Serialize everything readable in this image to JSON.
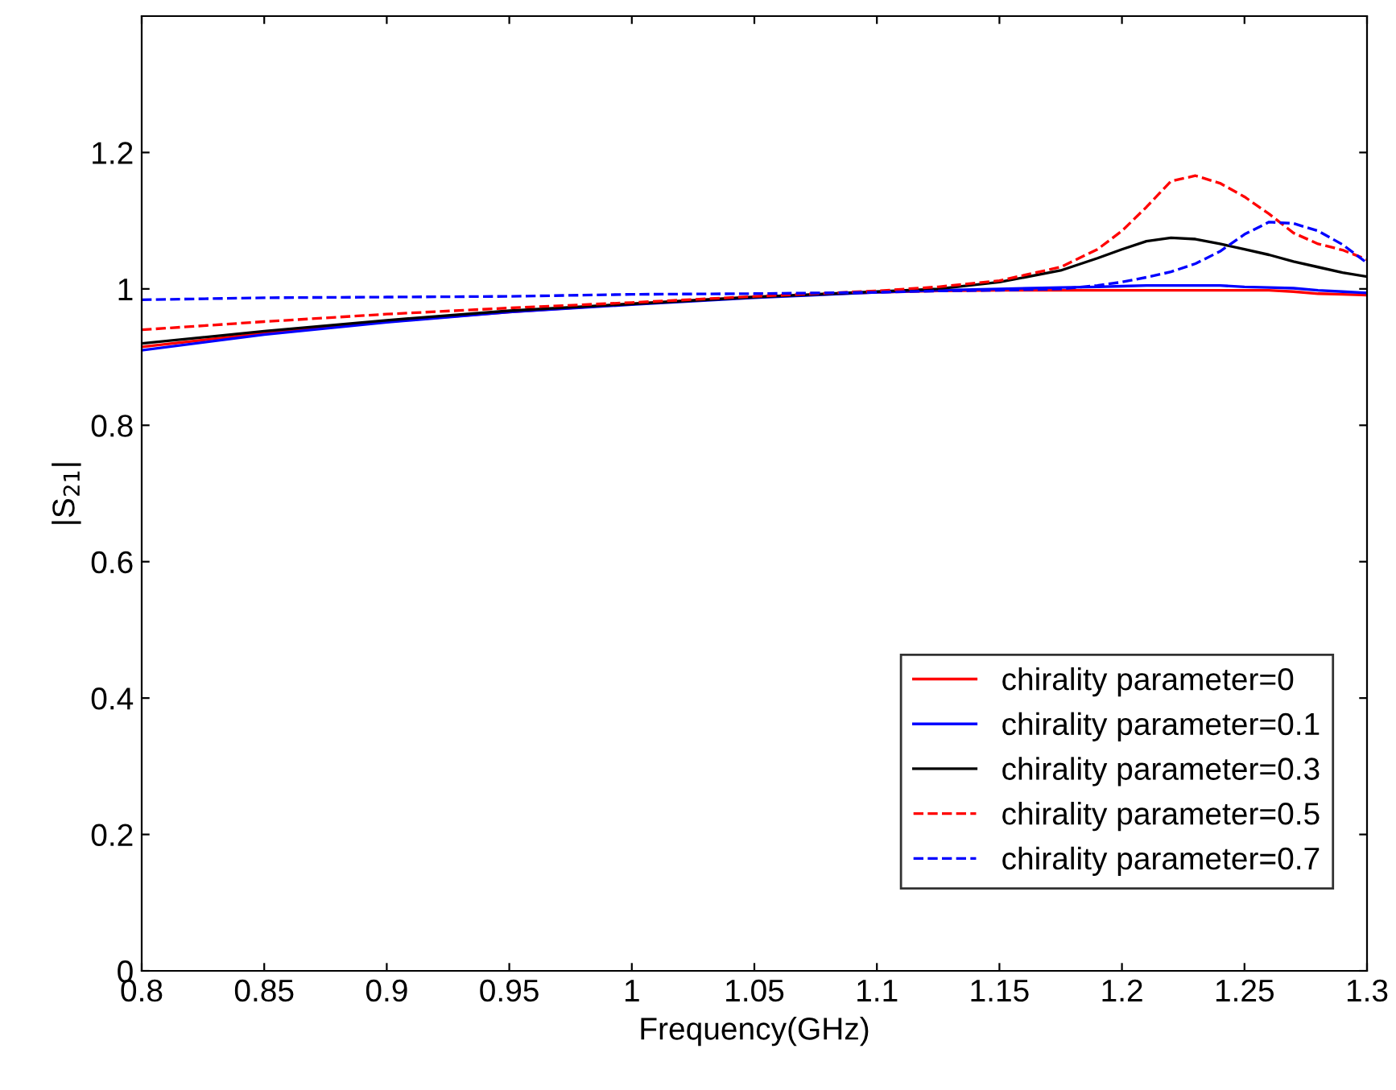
{
  "chart_data": {
    "type": "line",
    "xlabel": "Frequency(GHz)",
    "ylabel": "|S$_{21}$|",
    "x": [
      0.8,
      0.85,
      0.9,
      0.95,
      1.0,
      1.05,
      1.1,
      1.125,
      1.15,
      1.175,
      1.19,
      1.2,
      1.21,
      1.22,
      1.23,
      1.24,
      1.25,
      1.26,
      1.27,
      1.28,
      1.29,
      1.3
    ],
    "series": [
      {
        "name": "chirality parameter=0",
        "color": "#ff0000",
        "line_style": "solid",
        "values": [
          0.915,
          0.935,
          0.952,
          0.966,
          0.978,
          0.988,
          0.995,
          0.997,
          0.998,
          0.998,
          0.998,
          0.998,
          0.998,
          0.998,
          0.998,
          0.998,
          0.998,
          0.998,
          0.996,
          0.993,
          0.992,
          0.991
        ]
      },
      {
        "name": "chirality parameter=0.1",
        "color": "#0000ff",
        "line_style": "solid",
        "values": [
          0.91,
          0.933,
          0.951,
          0.966,
          0.977,
          0.987,
          0.995,
          0.998,
          1.0,
          1.002,
          1.003,
          1.004,
          1.005,
          1.005,
          1.005,
          1.005,
          1.003,
          1.002,
          1.001,
          0.998,
          0.996,
          0.994
        ]
      },
      {
        "name": "chirality parameter=0.3",
        "color": "#000000",
        "line_style": "solid",
        "values": [
          0.92,
          0.938,
          0.954,
          0.968,
          0.978,
          0.988,
          0.996,
          1.0,
          1.01,
          1.027,
          1.045,
          1.058,
          1.07,
          1.075,
          1.073,
          1.066,
          1.058,
          1.05,
          1.04,
          1.032,
          1.024,
          1.018
        ]
      },
      {
        "name": "chirality parameter=0.5",
        "color": "#ff0000",
        "line_style": "dashed",
        "values": [
          0.94,
          0.952,
          0.963,
          0.972,
          0.98,
          0.989,
          0.997,
          1.003,
          1.012,
          1.032,
          1.058,
          1.085,
          1.12,
          1.158,
          1.166,
          1.155,
          1.135,
          1.11,
          1.082,
          1.066,
          1.057,
          1.043
        ]
      },
      {
        "name": "chirality parameter=0.7",
        "color": "#0000ff",
        "line_style": "dashed",
        "values": [
          0.984,
          0.987,
          0.988,
          0.989,
          0.992,
          0.993,
          0.995,
          0.997,
          0.998,
          1.0,
          1.005,
          1.01,
          1.017,
          1.025,
          1.037,
          1.055,
          1.08,
          1.098,
          1.096,
          1.085,
          1.065,
          1.038
        ]
      }
    ],
    "xlim": [
      0.8,
      1.3
    ],
    "xticks": [
      0.8,
      0.85,
      0.9,
      0.95,
      1,
      1.05,
      1.1,
      1.15,
      1.2,
      1.25,
      1.3
    ],
    "ylim": [
      0,
      1.4
    ],
    "yticks": [
      0,
      0.2,
      0.4,
      0.6,
      0.8,
      1,
      1.2
    ],
    "grid": false,
    "legend": "bottom right"
  }
}
